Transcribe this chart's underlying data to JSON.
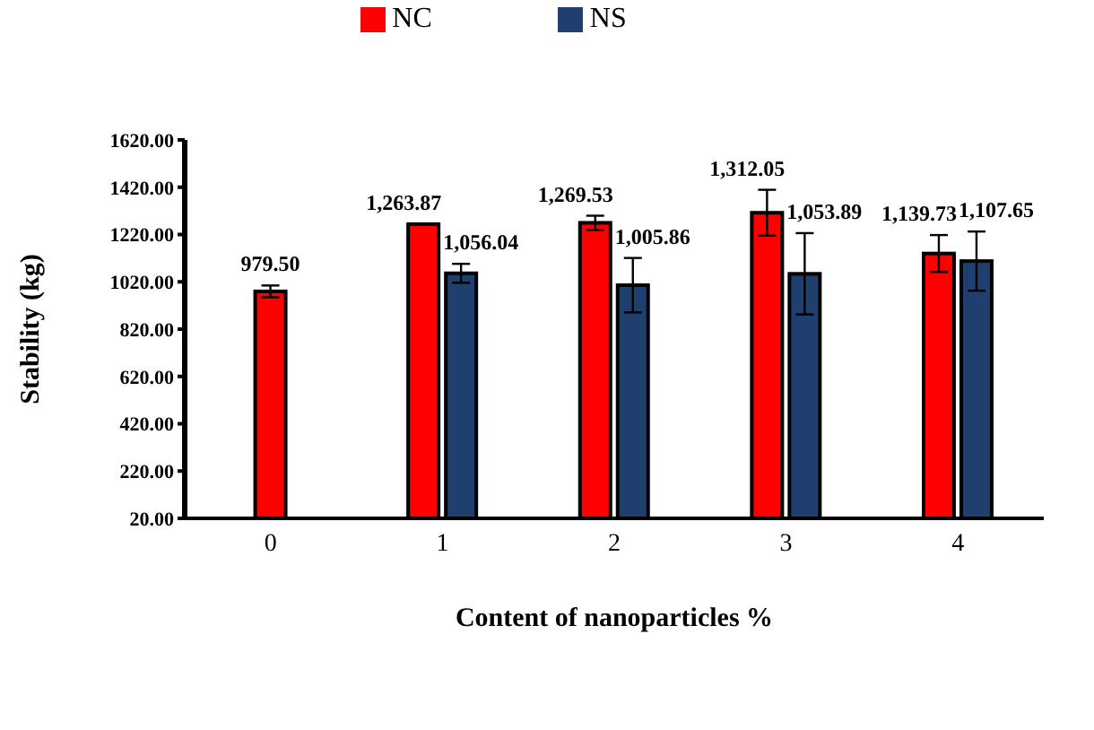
{
  "chart_data": {
    "type": "bar",
    "xlabel": "Content of nanoparticles %",
    "ylabel": "Stability (kg)",
    "categories": [
      "0",
      "1",
      "2",
      "3",
      "4"
    ],
    "series": [
      {
        "name": "NC",
        "color": "#ff0000",
        "values": [
          979.5,
          1263.87,
          1269.53,
          1312.05,
          1139.73
        ],
        "errors": [
          25,
          null,
          30,
          97,
          78
        ],
        "value_labels": [
          "979.50",
          "1,263.87",
          "1,269.53",
          "1,312.05",
          "1,139.73"
        ]
      },
      {
        "name": "NS",
        "color": "#1f3f6e",
        "values": [
          null,
          1056.04,
          1005.86,
          1053.89,
          1107.65
        ],
        "errors": [
          null,
          40,
          115,
          172,
          125
        ],
        "value_labels": [
          null,
          "1,056.04",
          "1,005.86",
          "1,053.89",
          "1,107.65"
        ]
      }
    ],
    "ylim": [
      20,
      1620
    ],
    "yticks": [
      {
        "value": 20,
        "label": "20.00"
      },
      {
        "value": 220,
        "label": "220.00"
      },
      {
        "value": 420,
        "label": "420.00"
      },
      {
        "value": 620,
        "label": "620.00"
      },
      {
        "value": 820,
        "label": "820.00"
      },
      {
        "value": 1020,
        "label": "1020.00"
      },
      {
        "value": 1220,
        "label": "1220.00"
      },
      {
        "value": 1420,
        "label": "1420.00"
      },
      {
        "value": 1620,
        "label": "1620.00"
      }
    ],
    "grid": false,
    "legend": "top"
  }
}
